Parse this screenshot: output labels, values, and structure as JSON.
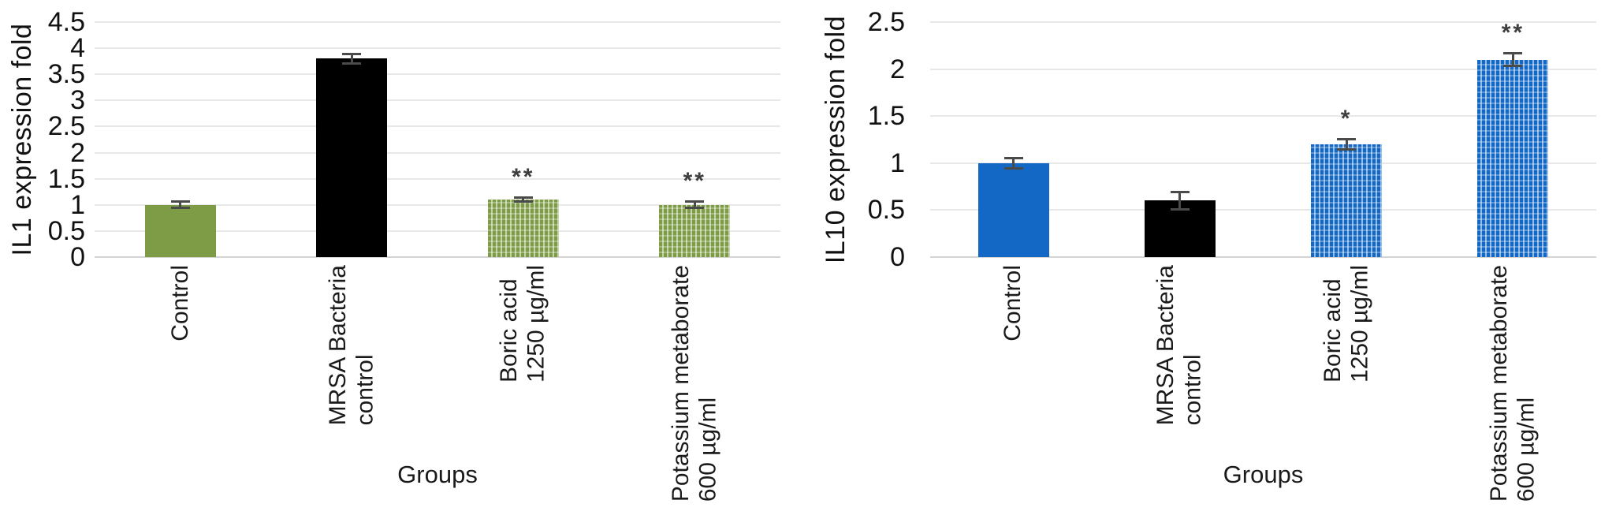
{
  "figure_title": "",
  "chart_data": [
    {
      "type": "bar",
      "title": "",
      "ylabel": "IL1 expression fold",
      "xlabel": "Groups",
      "ylim": [
        0,
        4.5
      ],
      "ytick_step": 0.5,
      "yticks": [
        "4.5",
        "4",
        "3.5",
        "3",
        "2.5",
        "2",
        "1.5",
        "1",
        "0.5",
        "0"
      ],
      "grid": "horizontal",
      "legend_position": "none",
      "categories": [
        "Control",
        "MRSA Bacteria\ncontrol",
        "Boric acid\n1250 µg/ml",
        "Potassium metaborate\n600 µg/ml"
      ],
      "values": [
        1.0,
        3.8,
        1.1,
        1.0
      ],
      "errors": [
        0.07,
        0.1,
        0.05,
        0.07
      ],
      "significance": [
        "",
        "",
        "**",
        "**"
      ],
      "bar_styles": [
        "solid",
        "solid",
        "pattern",
        "pattern"
      ],
      "bar_colors": [
        "#7d9c45",
        "#000000",
        "#7d9c45",
        "#7d9c45"
      ]
    },
    {
      "type": "bar",
      "title": "",
      "ylabel": "IL10 expression fold",
      "xlabel": "Groups",
      "ylim": [
        0,
        2.5
      ],
      "ytick_step": 0.5,
      "yticks": [
        "2.5",
        "2",
        "1.5",
        "1",
        "0.5",
        "0"
      ],
      "grid": "horizontal",
      "legend_position": "none",
      "categories": [
        "Control",
        "MRSA Bacteria\ncontrol",
        "Boric acid\n1250 µg/ml",
        "Potassium metaborate\n600 µg/ml"
      ],
      "values": [
        1.0,
        0.6,
        1.2,
        2.1
      ],
      "errors": [
        0.06,
        0.1,
        0.06,
        0.07
      ],
      "significance": [
        "",
        "",
        "*",
        "**"
      ],
      "bar_styles": [
        "solid",
        "solid",
        "pattern",
        "pattern"
      ],
      "bar_colors": [
        "#1268c4",
        "#000000",
        "#1268c4",
        "#1268c4"
      ]
    }
  ],
  "colors": {
    "solid_green": "#7d9c45",
    "solid_blue": "#1268c4",
    "solid_black": "#000000",
    "gridline": "#e8e8e8",
    "axis_line": "#d4d4d4",
    "error_bar": "#4a4a4a",
    "significance_mark": "#3e3e3e",
    "background": "#ffffff"
  }
}
